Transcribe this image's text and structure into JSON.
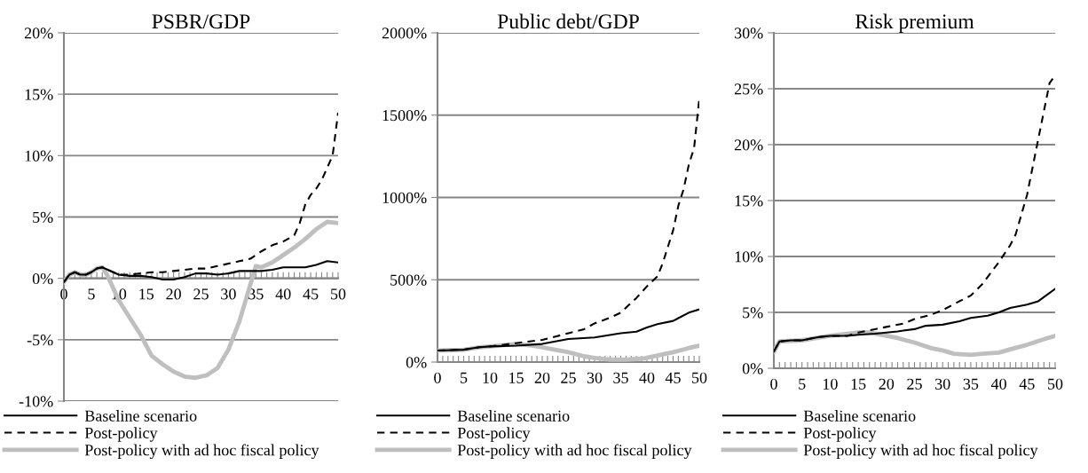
{
  "chart_data": [
    {
      "type": "line",
      "title": "PSBR/GDP",
      "legend": "bottom",
      "grid": "y",
      "xlim": [
        0,
        50
      ],
      "ylim": [
        -10,
        20
      ],
      "xticks": [
        0,
        {
          "value": 1,
          "label": null
        },
        {
          "value": 2,
          "label": null
        },
        {
          "value": 3,
          "label": null
        },
        {
          "value": 4,
          "label": null
        },
        5,
        {
          "value": 6,
          "label": null
        },
        {
          "value": 7,
          "label": null
        },
        {
          "value": 8,
          "label": null
        },
        {
          "value": 9,
          "label": null
        },
        10,
        {
          "value": 11,
          "label": null
        },
        {
          "value": 12,
          "label": null
        },
        {
          "value": 13,
          "label": null
        },
        {
          "value": 14,
          "label": null
        },
        15,
        {
          "value": 16,
          "label": null
        },
        {
          "value": 17,
          "label": null
        },
        {
          "value": 18,
          "label": null
        },
        {
          "value": 19,
          "label": null
        },
        20,
        {
          "value": 21,
          "label": null
        },
        {
          "value": 22,
          "label": null
        },
        {
          "value": 23,
          "label": null
        },
        {
          "value": 24,
          "label": null
        },
        25,
        {
          "value": 26,
          "label": null
        },
        {
          "value": 27,
          "label": null
        },
        {
          "value": 28,
          "label": null
        },
        {
          "value": 29,
          "label": null
        },
        30,
        {
          "value": 31,
          "label": null
        },
        {
          "value": 32,
          "label": null
        },
        {
          "value": 33,
          "label": null
        },
        {
          "value": 34,
          "label": null
        },
        35,
        {
          "value": 36,
          "label": null
        },
        {
          "value": 37,
          "label": null
        },
        {
          "value": 38,
          "label": null
        },
        {
          "value": 39,
          "label": null
        },
        40,
        {
          "value": 41,
          "label": null
        },
        {
          "value": 42,
          "label": null
        },
        {
          "value": 43,
          "label": null
        },
        {
          "value": 44,
          "label": null
        },
        45,
        {
          "value": 46,
          "label": null
        },
        {
          "value": 47,
          "label": null
        },
        {
          "value": 48,
          "label": null
        },
        {
          "value": 49,
          "label": null
        },
        50
      ],
      "yticks": [
        {
          "value": -10,
          "label": "-10%"
        },
        {
          "value": -5,
          "label": "-5%"
        },
        {
          "value": 0,
          "label": "0%"
        },
        {
          "value": 5,
          "label": "5%"
        },
        {
          "value": 10,
          "label": "10%"
        },
        {
          "value": 15,
          "label": "15%"
        },
        {
          "value": 20,
          "label": "20%"
        }
      ],
      "series": [
        {
          "name": "Baseline scenario",
          "color": "#000000",
          "line_style": "solid",
          "x": [
            0,
            1,
            2,
            3,
            4,
            5,
            6,
            7,
            8,
            10,
            12,
            14,
            16,
            18,
            20,
            22,
            24,
            26,
            28,
            30,
            32,
            34,
            36,
            38,
            40,
            42,
            44,
            46,
            48,
            50
          ],
          "values": [
            -0.3,
            0.3,
            0.5,
            0.3,
            0.3,
            0.5,
            0.8,
            0.9,
            0.7,
            0.3,
            0.2,
            0.2,
            0.1,
            -0.1,
            -0.1,
            0.1,
            0.4,
            0.4,
            0.3,
            0.4,
            0.6,
            0.6,
            0.6,
            0.7,
            0.9,
            0.9,
            0.9,
            1.1,
            1.4,
            1.3
          ]
        },
        {
          "name": "Post-policy",
          "color": "#000000",
          "line_style": "dashed",
          "x": [
            0,
            1,
            2,
            3,
            4,
            5,
            6,
            7,
            8,
            10,
            12,
            14,
            16,
            18,
            20,
            22,
            24,
            26,
            28,
            30,
            32,
            34,
            36,
            38,
            40,
            42,
            43,
            44,
            45,
            46,
            47,
            48,
            49,
            50
          ],
          "values": [
            -0.3,
            0.3,
            0.5,
            0.3,
            0.3,
            0.5,
            0.8,
            0.9,
            0.7,
            0.3,
            0.3,
            0.4,
            0.5,
            0.5,
            0.6,
            0.7,
            0.8,
            0.8,
            1.0,
            1.2,
            1.4,
            1.6,
            2.2,
            2.7,
            3.0,
            3.5,
            4.5,
            6.0,
            6.8,
            7.3,
            8.0,
            9.0,
            10.0,
            13.5
          ]
        },
        {
          "name": "Post-policy with ad hoc fiscal policy",
          "color": "#bfbfbf",
          "line_style": "solid",
          "x": [
            0,
            1,
            2,
            3,
            4,
            5,
            6,
            7,
            8,
            10,
            12,
            14,
            16,
            18,
            20,
            22,
            24,
            26,
            28,
            30,
            32,
            34,
            35,
            36,
            38,
            40,
            42,
            44,
            46,
            48,
            50
          ],
          "values": [
            -0.3,
            0.3,
            0.5,
            0.3,
            0.3,
            0.5,
            0.8,
            0.9,
            0.2,
            -1.8,
            -3.2,
            -4.6,
            -6.3,
            -7.0,
            -7.6,
            -8.0,
            -8.1,
            -7.9,
            -7.3,
            -5.8,
            -3.5,
            -0.5,
            1.0,
            0.9,
            1.3,
            1.9,
            2.5,
            3.2,
            4.0,
            4.6,
            4.5
          ]
        }
      ]
    },
    {
      "type": "line",
      "title": "Public debt/GDP",
      "legend": "bottom",
      "grid": "y",
      "xlim": [
        0,
        50
      ],
      "ylim": [
        0,
        2000
      ],
      "xticks": [
        0,
        {
          "value": 1,
          "label": null
        },
        {
          "value": 2,
          "label": null
        },
        {
          "value": 3,
          "label": null
        },
        {
          "value": 4,
          "label": null
        },
        5,
        {
          "value": 6,
          "label": null
        },
        {
          "value": 7,
          "label": null
        },
        {
          "value": 8,
          "label": null
        },
        {
          "value": 9,
          "label": null
        },
        10,
        {
          "value": 11,
          "label": null
        },
        {
          "value": 12,
          "label": null
        },
        {
          "value": 13,
          "label": null
        },
        {
          "value": 14,
          "label": null
        },
        15,
        {
          "value": 16,
          "label": null
        },
        {
          "value": 17,
          "label": null
        },
        {
          "value": 18,
          "label": null
        },
        {
          "value": 19,
          "label": null
        },
        20,
        {
          "value": 21,
          "label": null
        },
        {
          "value": 22,
          "label": null
        },
        {
          "value": 23,
          "label": null
        },
        {
          "value": 24,
          "label": null
        },
        25,
        {
          "value": 26,
          "label": null
        },
        {
          "value": 27,
          "label": null
        },
        {
          "value": 28,
          "label": null
        },
        {
          "value": 29,
          "label": null
        },
        30,
        {
          "value": 31,
          "label": null
        },
        {
          "value": 32,
          "label": null
        },
        {
          "value": 33,
          "label": null
        },
        {
          "value": 34,
          "label": null
        },
        35,
        {
          "value": 36,
          "label": null
        },
        {
          "value": 37,
          "label": null
        },
        {
          "value": 38,
          "label": null
        },
        {
          "value": 39,
          "label": null
        },
        40,
        {
          "value": 41,
          "label": null
        },
        {
          "value": 42,
          "label": null
        },
        {
          "value": 43,
          "label": null
        },
        {
          "value": 44,
          "label": null
        },
        45,
        {
          "value": 46,
          "label": null
        },
        {
          "value": 47,
          "label": null
        },
        {
          "value": 48,
          "label": null
        },
        {
          "value": 49,
          "label": null
        },
        50
      ],
      "yticks": [
        {
          "value": 0,
          "label": "0%"
        },
        {
          "value": 500,
          "label": "500%"
        },
        {
          "value": 1000,
          "label": "1000%"
        },
        {
          "value": 1500,
          "label": "1500%"
        },
        {
          "value": 2000,
          "label": "2000%"
        }
      ],
      "series": [
        {
          "name": "Baseline scenario",
          "color": "#000000",
          "line_style": "solid",
          "x": [
            0,
            5,
            8,
            10,
            15,
            20,
            25,
            30,
            35,
            38,
            40,
            42,
            45,
            48,
            50
          ],
          "values": [
            70,
            75,
            90,
            95,
            100,
            110,
            140,
            150,
            175,
            185,
            210,
            230,
            250,
            300,
            320
          ]
        },
        {
          "name": "Post-policy",
          "color": "#000000",
          "line_style": "dashed",
          "x": [
            0,
            5,
            8,
            10,
            15,
            20,
            25,
            28,
            30,
            33,
            35,
            38,
            40,
            42,
            43,
            45,
            46,
            47,
            48,
            49,
            50
          ],
          "values": [
            70,
            75,
            90,
            95,
            115,
            135,
            175,
            200,
            235,
            270,
            300,
            390,
            460,
            520,
            600,
            800,
            950,
            1050,
            1200,
            1300,
            1600
          ]
        },
        {
          "name": "Post-policy with ad hoc fiscal policy",
          "color": "#bfbfbf",
          "line_style": "solid",
          "x": [
            0,
            5,
            8,
            10,
            15,
            18,
            20,
            25,
            28,
            30,
            33,
            36,
            39,
            42,
            45,
            48,
            50
          ],
          "values": [
            70,
            75,
            90,
            95,
            110,
            100,
            90,
            60,
            35,
            25,
            15,
            15,
            20,
            40,
            60,
            85,
            100
          ]
        }
      ]
    },
    {
      "type": "line",
      "title": "Risk premium",
      "legend": "bottom",
      "grid": "y",
      "xlim": [
        0,
        50
      ],
      "ylim": [
        0,
        30
      ],
      "xticks": [
        0,
        {
          "value": 1,
          "label": null
        },
        {
          "value": 2,
          "label": null
        },
        {
          "value": 3,
          "label": null
        },
        {
          "value": 4,
          "label": null
        },
        5,
        {
          "value": 6,
          "label": null
        },
        {
          "value": 7,
          "label": null
        },
        {
          "value": 8,
          "label": null
        },
        {
          "value": 9,
          "label": null
        },
        10,
        {
          "value": 11,
          "label": null
        },
        {
          "value": 12,
          "label": null
        },
        {
          "value": 13,
          "label": null
        },
        {
          "value": 14,
          "label": null
        },
        15,
        {
          "value": 16,
          "label": null
        },
        {
          "value": 17,
          "label": null
        },
        {
          "value": 18,
          "label": null
        },
        {
          "value": 19,
          "label": null
        },
        20,
        {
          "value": 21,
          "label": null
        },
        {
          "value": 22,
          "label": null
        },
        {
          "value": 23,
          "label": null
        },
        {
          "value": 24,
          "label": null
        },
        25,
        {
          "value": 26,
          "label": null
        },
        {
          "value": 27,
          "label": null
        },
        {
          "value": 28,
          "label": null
        },
        {
          "value": 29,
          "label": null
        },
        30,
        {
          "value": 31,
          "label": null
        },
        {
          "value": 32,
          "label": null
        },
        {
          "value": 33,
          "label": null
        },
        {
          "value": 34,
          "label": null
        },
        35,
        {
          "value": 36,
          "label": null
        },
        {
          "value": 37,
          "label": null
        },
        {
          "value": 38,
          "label": null
        },
        {
          "value": 39,
          "label": null
        },
        40,
        {
          "value": 41,
          "label": null
        },
        {
          "value": 42,
          "label": null
        },
        {
          "value": 43,
          "label": null
        },
        {
          "value": 44,
          "label": null
        },
        45,
        {
          "value": 46,
          "label": null
        },
        {
          "value": 47,
          "label": null
        },
        {
          "value": 48,
          "label": null
        },
        {
          "value": 49,
          "label": null
        },
        50
      ],
      "yticks": [
        {
          "value": 0,
          "label": "0%"
        },
        {
          "value": 5,
          "label": "5%"
        },
        {
          "value": 10,
          "label": "10%"
        },
        {
          "value": 15,
          "label": "15%"
        },
        {
          "value": 20,
          "label": "20%"
        },
        {
          "value": 25,
          "label": "25%"
        },
        {
          "value": 30,
          "label": "30%"
        }
      ],
      "series": [
        {
          "name": "Baseline scenario",
          "color": "#000000",
          "line_style": "solid",
          "x": [
            0,
            1,
            3,
            5,
            8,
            10,
            13,
            15,
            18,
            20,
            22,
            25,
            27,
            30,
            33,
            35,
            38,
            40,
            42,
            45,
            47,
            50
          ],
          "values": [
            1.5,
            2.4,
            2.5,
            2.5,
            2.8,
            2.9,
            2.9,
            3.0,
            3.1,
            3.2,
            3.3,
            3.5,
            3.8,
            3.9,
            4.2,
            4.5,
            4.7,
            5.0,
            5.4,
            5.7,
            6.0,
            7.1
          ]
        },
        {
          "name": "Post-policy",
          "color": "#000000",
          "line_style": "dashed",
          "x": [
            0,
            1,
            3,
            5,
            8,
            10,
            13,
            15,
            18,
            20,
            23,
            25,
            28,
            30,
            33,
            35,
            37,
            40,
            42,
            43,
            45,
            46,
            47,
            48,
            49,
            50
          ],
          "values": [
            1.5,
            2.4,
            2.5,
            2.5,
            2.8,
            2.9,
            2.9,
            3.2,
            3.5,
            3.7,
            4.0,
            4.4,
            4.8,
            5.2,
            6.0,
            6.5,
            7.5,
            9.5,
            11.0,
            12.0,
            15.5,
            18.0,
            20.5,
            23.0,
            25.5,
            26.2
          ]
        },
        {
          "name": "Post-policy with ad hoc fiscal policy",
          "color": "#bfbfbf",
          "line_style": "solid",
          "x": [
            0,
            1,
            5,
            10,
            15,
            17,
            20,
            22,
            25,
            28,
            30,
            32,
            35,
            37,
            40,
            42,
            45,
            48,
            50
          ],
          "values": [
            1.5,
            2.4,
            2.5,
            2.9,
            3.2,
            3.2,
            2.9,
            2.7,
            2.3,
            1.8,
            1.6,
            1.3,
            1.2,
            1.3,
            1.4,
            1.7,
            2.1,
            2.6,
            2.9
          ]
        }
      ]
    }
  ]
}
